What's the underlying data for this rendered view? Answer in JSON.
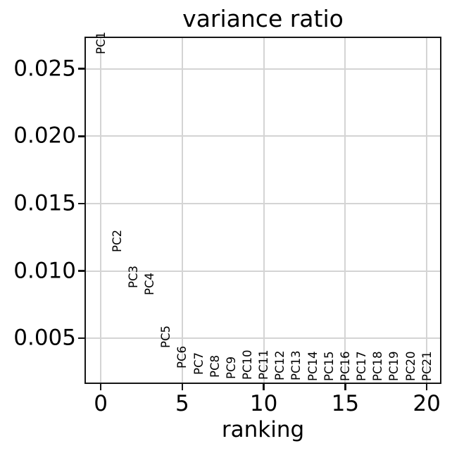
{
  "figure": {
    "background": "#ffffff"
  },
  "chart_data": {
    "type": "scatter",
    "title": "variance ratio",
    "xlabel": "ranking",
    "ylabel": "",
    "grid": true,
    "legend": false,
    "xlim": [
      -1.0,
      20.9
    ],
    "ylim": [
      0.00161,
      0.02739
    ],
    "xticks": {
      "values": [
        0,
        5,
        10,
        15,
        20
      ],
      "labels": [
        "0",
        "5",
        "10",
        "15",
        "20"
      ]
    },
    "yticks": {
      "values": [
        0.005,
        0.01,
        0.015,
        0.02,
        0.025
      ],
      "labels": [
        "0.005",
        "0.010",
        "0.015",
        "0.020",
        "0.025"
      ]
    },
    "annotation_style": "rotated-90-text-at-point",
    "series": [
      {
        "name": "variance ratio",
        "points": [
          {
            "label": "PC1",
            "x": 0,
            "y": 0.0261
          },
          {
            "label": "PC2",
            "x": 1,
            "y": 0.0114
          },
          {
            "label": "PC3",
            "x": 2,
            "y": 0.0087
          },
          {
            "label": "PC4",
            "x": 3,
            "y": 0.0082
          },
          {
            "label": "PC5",
            "x": 4,
            "y": 0.0043
          },
          {
            "label": "PC6",
            "x": 5,
            "y": 0.00274
          },
          {
            "label": "PC7",
            "x": 6,
            "y": 0.0023
          },
          {
            "label": "PC8",
            "x": 7,
            "y": 0.0021
          },
          {
            "label": "PC9",
            "x": 8,
            "y": 0.002
          },
          {
            "label": "PC10",
            "x": 9,
            "y": 0.00193
          },
          {
            "label": "PC11",
            "x": 10,
            "y": 0.0019
          },
          {
            "label": "PC12",
            "x": 11,
            "y": 0.00187
          },
          {
            "label": "PC13",
            "x": 12,
            "y": 0.00185
          },
          {
            "label": "PC14",
            "x": 13,
            "y": 0.00184
          },
          {
            "label": "PC15",
            "x": 14,
            "y": 0.00183
          },
          {
            "label": "PC16",
            "x": 15,
            "y": 0.00182
          },
          {
            "label": "PC17",
            "x": 16,
            "y": 0.00182
          },
          {
            "label": "PC18",
            "x": 17,
            "y": 0.00181
          },
          {
            "label": "PC19",
            "x": 18,
            "y": 0.00181
          },
          {
            "label": "PC20",
            "x": 19,
            "y": 0.0018
          },
          {
            "label": "PC21",
            "x": 20,
            "y": 0.0018
          }
        ]
      }
    ],
    "colors": {
      "text": "#000000",
      "spine": "#151515",
      "grid": "#d4d4d4",
      "background": "#ffffff"
    }
  }
}
